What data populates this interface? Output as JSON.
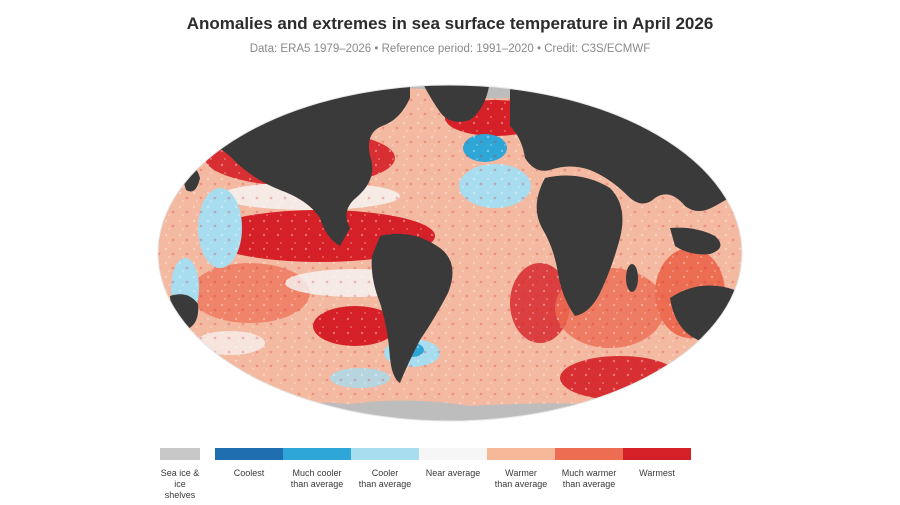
{
  "header": {
    "title": "Anomalies and extremes in sea surface temperature in April 2026",
    "subtitle": "Data: ERA5 1979–2026 • Reference period: 1991–2020 • Credit: C3S/ECMWF"
  },
  "map": {
    "projection": "robinson-like world map",
    "ocean_base_color": "#f2b79f",
    "land_color": "#3a3a3a",
    "ice_color": "#bdbdbd"
  },
  "legend": {
    "items": [
      {
        "label": "Sea ice &\nice shelves",
        "color": "#c8c8c8"
      },
      {
        "label": "Coolest",
        "color": "#1f6fb0"
      },
      {
        "label": "Much cooler\nthan average",
        "color": "#2fa6d8"
      },
      {
        "label": "Cooler\nthan average",
        "color": "#a8dcef"
      },
      {
        "label": "Near average",
        "color": "#f6f6f6"
      },
      {
        "label": "Warmer\nthan average",
        "color": "#f7b89a"
      },
      {
        "label": "Much warmer\nthan average",
        "color": "#ec6d52"
      },
      {
        "label": "Warmest",
        "color": "#d52027"
      }
    ]
  }
}
